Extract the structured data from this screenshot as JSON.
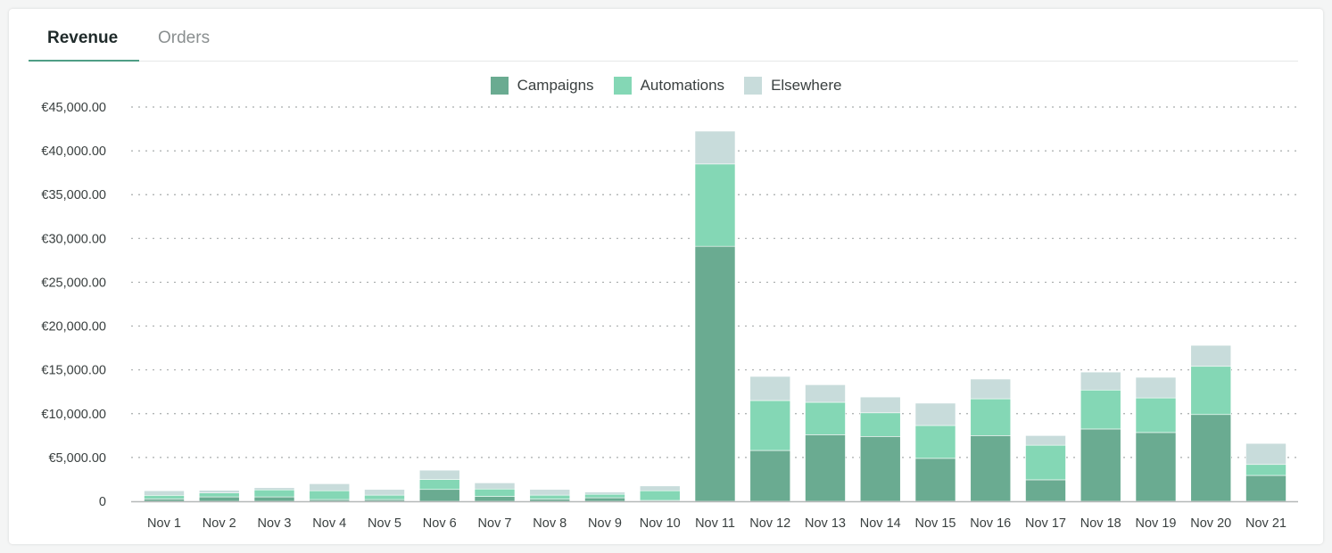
{
  "tabs": [
    {
      "label": "Revenue",
      "active": true
    },
    {
      "label": "Orders",
      "active": false
    }
  ],
  "chart_data": {
    "type": "bar",
    "stacked": true,
    "title": "",
    "xlabel": "",
    "ylabel": "",
    "ylim": [
      0,
      45000
    ],
    "yticks": [
      0,
      5000,
      10000,
      15000,
      20000,
      25000,
      30000,
      35000,
      40000,
      45000
    ],
    "ytick_labels": [
      "0",
      "€5,000.00",
      "€10,000.00",
      "€15,000.00",
      "€20,000.00",
      "€25,000.00",
      "€30,000.00",
      "€35,000.00",
      "€40,000.00",
      "€45,000.00"
    ],
    "grid": true,
    "legend_position": "top-center",
    "categories": [
      "Nov 1",
      "Nov 2",
      "Nov 3",
      "Nov 4",
      "Nov 5",
      "Nov 6",
      "Nov 7",
      "Nov 8",
      "Nov 9",
      "Nov 10",
      "Nov 11",
      "Nov 12",
      "Nov 13",
      "Nov 14",
      "Nov 15",
      "Nov 16",
      "Nov 17",
      "Nov 18",
      "Nov 19",
      "Nov 20",
      "Nov 21"
    ],
    "series": [
      {
        "name": "Campaigns",
        "color": "#6aab91",
        "values": [
          270,
          500,
          500,
          200,
          200,
          1350,
          550,
          250,
          400,
          100,
          29100,
          5800,
          7600,
          7400,
          4900,
          7500,
          2450,
          8250,
          7850,
          9900,
          2950
        ]
      },
      {
        "name": "Automations",
        "color": "#84d7b5",
        "values": [
          410,
          450,
          800,
          1000,
          500,
          1150,
          850,
          450,
          400,
          1100,
          9400,
          5700,
          3700,
          2700,
          3750,
          4200,
          3950,
          4450,
          3950,
          5500,
          1250
        ]
      },
      {
        "name": "Elsewhere",
        "color": "#c8dcdb",
        "values": [
          520,
          300,
          250,
          800,
          650,
          1050,
          700,
          650,
          250,
          550,
          3750,
          2750,
          2000,
          1800,
          2550,
          2250,
          1100,
          2050,
          2350,
          2400,
          2400
        ]
      }
    ]
  }
}
